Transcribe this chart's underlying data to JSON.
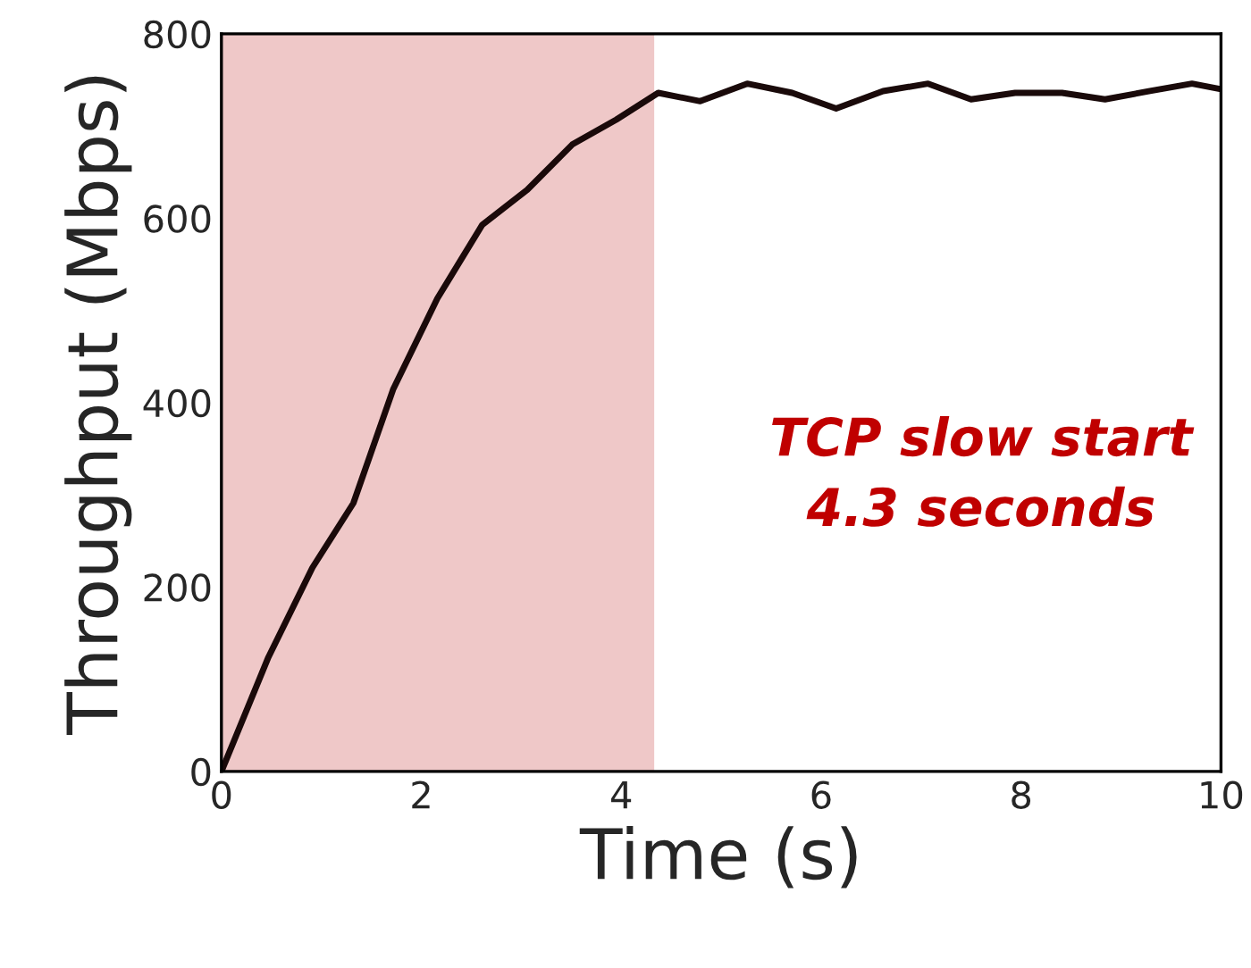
{
  "chart_data": {
    "type": "line",
    "xlabel": "Time (s)",
    "ylabel": "Throughput (Mbps)",
    "x": [
      0,
      0.47,
      0.91,
      1.32,
      1.72,
      2.16,
      2.61,
      3.06,
      3.51,
      3.95,
      4.37,
      4.79,
      5.26,
      5.71,
      6.15,
      6.62,
      7.07,
      7.5,
      7.94,
      8.41,
      8.84,
      9.29,
      9.71,
      10
    ],
    "series": [
      {
        "color": "#1a0a0a",
        "values": [
          0,
          124,
          221,
          291,
          415,
          513,
          593,
          631,
          680,
          707,
          736,
          727,
          746,
          736,
          719,
          738,
          746,
          729,
          736,
          736,
          729,
          738,
          746,
          740
        ]
      }
    ],
    "xlim": [
      0,
      10
    ],
    "ylim": [
      0,
      800
    ],
    "xticks": [
      0,
      2,
      4,
      6,
      8,
      10
    ],
    "yticks": [
      0,
      200,
      400,
      600,
      800
    ],
    "bands": [
      {
        "axis": "x",
        "from": 0,
        "to": 4.33,
        "color": "#efc8c8"
      }
    ],
    "annotations": [
      "TCP slow start\n4.3 seconds"
    ],
    "grid": false,
    "legend": false
  }
}
